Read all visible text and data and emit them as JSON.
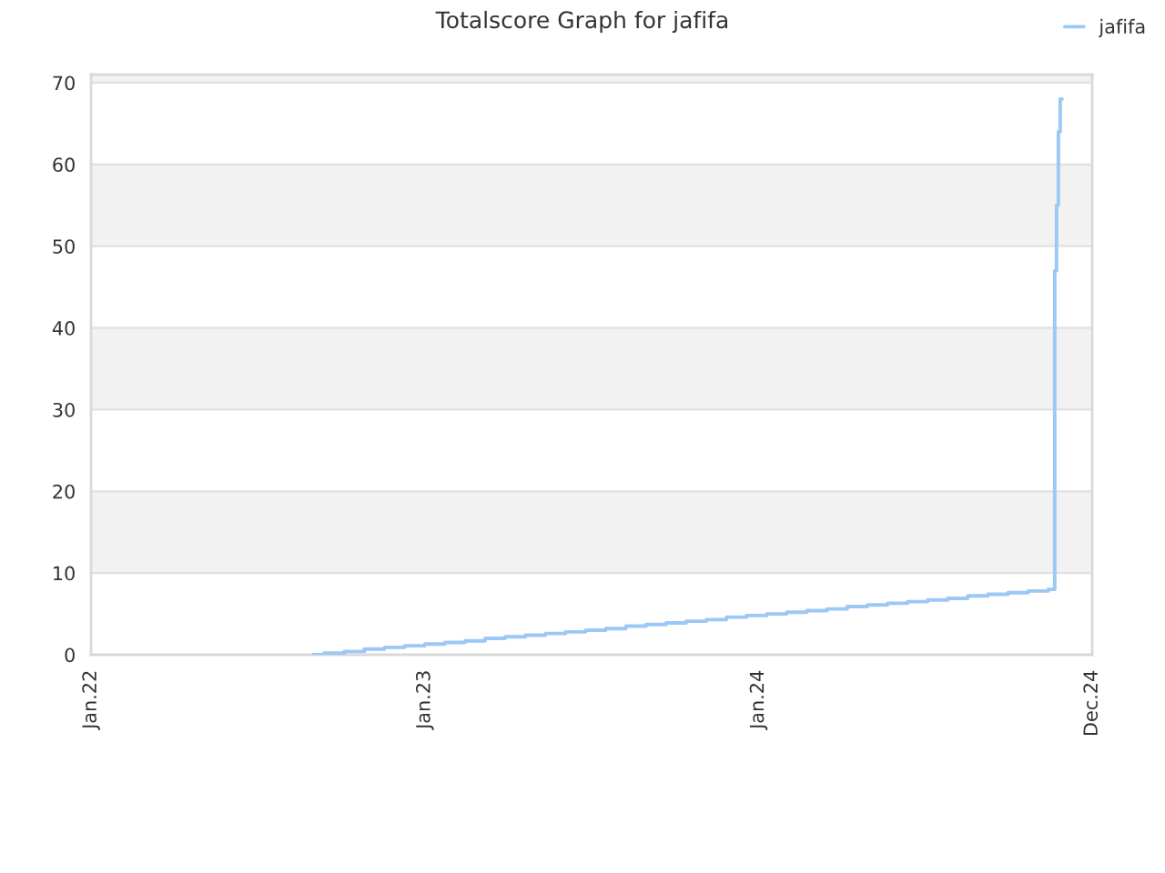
{
  "chart_data": {
    "type": "step",
    "title": "Totalscore Graph for jafifa",
    "x": [
      "2022-09-01",
      "2022-09-13",
      "2022-10-05",
      "2022-10-27",
      "2022-11-18",
      "2022-12-10",
      "2023-01-01",
      "2023-01-23",
      "2023-02-14",
      "2023-03-08",
      "2023-03-30",
      "2023-04-21",
      "2023-05-13",
      "2023-06-04",
      "2023-06-26",
      "2023-07-18",
      "2023-08-09",
      "2023-08-31",
      "2023-09-22",
      "2023-10-14",
      "2023-11-05",
      "2023-11-27",
      "2023-12-19",
      "2024-01-10",
      "2024-02-01",
      "2024-02-23",
      "2024-03-16",
      "2024-04-07",
      "2024-04-29",
      "2024-05-21",
      "2024-06-12",
      "2024-07-04",
      "2024-07-26",
      "2024-08-17",
      "2024-09-08",
      "2024-09-30",
      "2024-10-22",
      "2024-11-13",
      "2024-11-20",
      "2024-11-22",
      "2024-11-24",
      "2024-11-26",
      "2024-11-28"
    ],
    "series": [
      {
        "name": "jafifa",
        "color": "#9cc8f5",
        "values": [
          0.0,
          0.2,
          0.4,
          0.7,
          0.9,
          1.1,
          1.3,
          1.5,
          1.7,
          2.0,
          2.2,
          2.4,
          2.6,
          2.8,
          3.0,
          3.2,
          3.5,
          3.7,
          3.9,
          4.1,
          4.3,
          4.6,
          4.8,
          5.0,
          5.2,
          5.4,
          5.6,
          5.9,
          6.1,
          6.3,
          6.5,
          6.7,
          6.9,
          7.2,
          7.4,
          7.6,
          7.8,
          8.0,
          47,
          55,
          64,
          68,
          68
        ]
      }
    ],
    "xlim": [
      "2022-01-01",
      "2024-12-31"
    ],
    "xticks": [
      {
        "value": "2022-01-01",
        "label": "Jan.22"
      },
      {
        "value": "2023-01-01",
        "label": "Jan.23"
      },
      {
        "value": "2024-01-01",
        "label": "Jan.24"
      },
      {
        "value": "2024-12-31",
        "label": "Dec.24"
      }
    ],
    "ylim": [
      0,
      71
    ],
    "yticks": [
      0,
      10,
      20,
      30,
      40,
      50,
      60,
      70
    ],
    "bands": [
      {
        "axis": "y",
        "from": 10,
        "to": 20,
        "color": "#f2f2f2"
      },
      {
        "axis": "y",
        "from": 30,
        "to": 40,
        "color": "#f2f2f2"
      },
      {
        "axis": "y",
        "from": 50,
        "to": 60,
        "color": "#f2f2f2"
      },
      {
        "axis": "y",
        "from": 70,
        "to": 71,
        "color": "#f2f2f2"
      }
    ],
    "grid": "y",
    "legend": "top right",
    "marker": "none",
    "line_style": "solid"
  }
}
